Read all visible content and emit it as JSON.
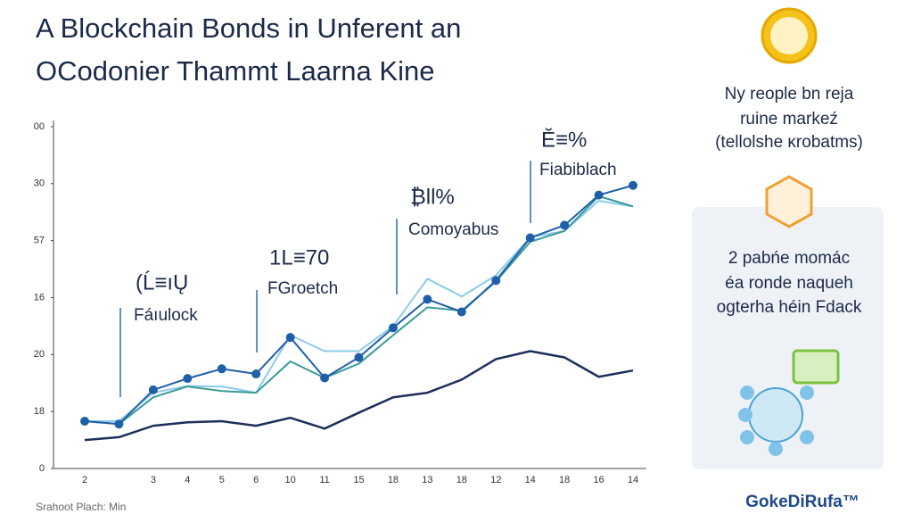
{
  "chart_data": {
    "type": "line",
    "title": [
      "A Blockchain Bonds in Unferent an",
      "OCodonier Thammt Laarna Kine"
    ],
    "categories": [
      "2",
      null,
      "3",
      "4",
      "5",
      "6",
      "10",
      "11",
      "15",
      "18",
      "13",
      "18",
      "12",
      "14",
      "18",
      "16",
      "14"
    ],
    "ylim": [
      0,
      60
    ],
    "yticks": [
      {
        "value": 0,
        "label": "0"
      },
      {
        "value": 10,
        "label": "18"
      },
      20,
      {
        "value": 30,
        "label": "16"
      },
      {
        "value": 40,
        "label": "57"
      },
      {
        "value": 50,
        "label": "30"
      },
      {
        "value": 60,
        "label": "00"
      }
    ],
    "series": [
      {
        "color": "#1d2f5c",
        "values": [
          5.0,
          5.5,
          7.5,
          8.1,
          8.3,
          7.5,
          8.9,
          7.0,
          9.8,
          12.5,
          13.3,
          15.6,
          19.2,
          20.6,
          19.5,
          16.1,
          17.2
        ]
      },
      {
        "color": "#8ccbea",
        "values": [
          8.3,
          8.3,
          13.3,
          14.5,
          14.4,
          13.3,
          23.4,
          20.6,
          20.6,
          25.0,
          33.3,
          30.2,
          33.9,
          40.6,
          41.7,
          47.0,
          46.0
        ]
      },
      {
        "color": "#3a9a9a",
        "values": [
          8.3,
          7.8,
          12.5,
          14.4,
          13.6,
          13.3,
          18.8,
          15.9,
          18.4,
          23.4,
          28.3,
          27.7,
          32.8,
          39.8,
          41.7,
          47.8,
          46.0
        ]
      },
      {
        "color": "#1f5fa8",
        "markers": true,
        "values": [
          8.3,
          7.8,
          13.8,
          15.8,
          17.5,
          16.6,
          23.0,
          15.9,
          19.5,
          24.7,
          29.7,
          27.5,
          33.0,
          40.5,
          42.7,
          48.0,
          49.7
        ]
      }
    ],
    "annotations": [
      {
        "head": "(Ĺ≡ıŲ",
        "label": "Fáıulock"
      },
      {
        "head": "1L≡70",
        "label": "FGroetch"
      },
      {
        "head": "₿ll%",
        "label": "Comoyabus"
      },
      {
        "head": "Ĕ≡%",
        "label": "Fiabiblach"
      }
    ]
  },
  "side_panel": {
    "caption": [
      "Ny reople bn reja",
      "ruine markeź",
      "(tellolshe ĸrobatms)"
    ],
    "card": [
      "2 pabńe momác",
      "éa ronde naqueh",
      "ogterha héin Fdack"
    ],
    "logo": "GokeDiRufa™"
  },
  "footer": "Srahoot Plach: Min"
}
